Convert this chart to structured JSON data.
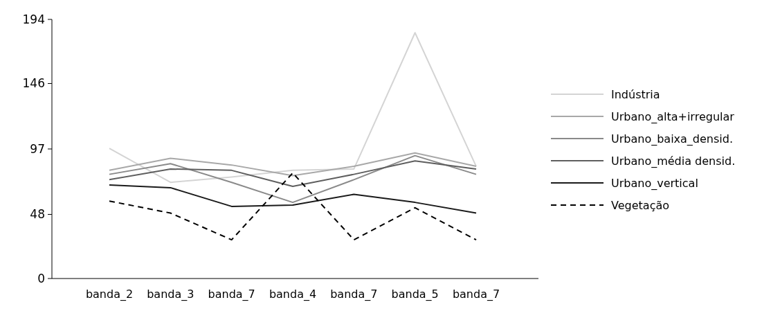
{
  "chart_data": {
    "type": "line",
    "categories": [
      "banda_2",
      "banda_3",
      "banda_7",
      "banda_4",
      "banda_7",
      "banda_5",
      "banda_7"
    ],
    "series": [
      {
        "name": "Indústria",
        "color": "#d4d4d4",
        "values": [
          97.5,
          72,
          76,
          81,
          82,
          184,
          84
        ]
      },
      {
        "name": "Urbano_alta+irregular",
        "color": "#a8a8a8",
        "values": [
          81,
          90,
          85,
          77,
          84,
          94,
          84
        ]
      },
      {
        "name": "Urbano_baixa_densid.",
        "color": "#8a8a8a",
        "values": [
          78,
          86,
          72,
          57,
          74,
          92,
          78
        ]
      },
      {
        "name": "Urbano_média densid.",
        "color": "#5e5e5e",
        "values": [
          74,
          82,
          81,
          69,
          78,
          88,
          82
        ]
      },
      {
        "name": "Urbano_vertical",
        "color": "#1a1a1a",
        "values": [
          70,
          68,
          54,
          55,
          63,
          57,
          49
        ]
      },
      {
        "name": "Vegetação",
        "color": "#000000",
        "line_style": "dashed",
        "values": [
          58,
          49,
          29,
          79,
          29,
          53,
          29
        ]
      }
    ],
    "ylim": [
      0,
      194
    ],
    "yticks": [
      0,
      48,
      97,
      146,
      194
    ],
    "legend": "right",
    "marker": "none",
    "grid": false
  }
}
